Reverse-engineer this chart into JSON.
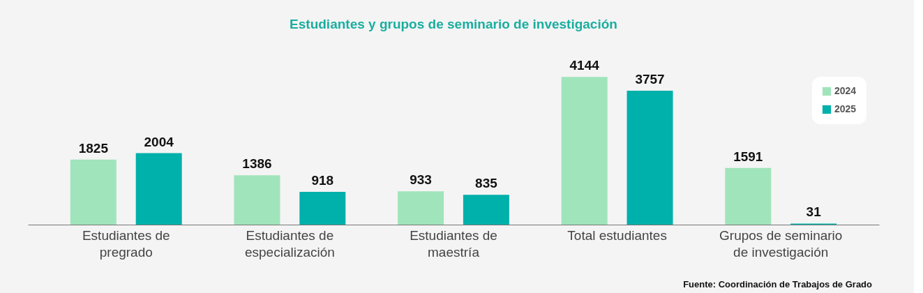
{
  "chart_data": {
    "type": "bar",
    "title": "Estudiantes y grupos de seminario de investigación",
    "categories": [
      "Estudiantes de pregrado",
      "Estudiantes de especialización",
      "Estudiantes de maestría",
      "Total estudiantes",
      "Grupos de seminario de investigación"
    ],
    "series": [
      {
        "name": "2024",
        "color": "#a0e4bb",
        "values": [
          1825,
          1386,
          933,
          4144,
          1591
        ]
      },
      {
        "name": "2025",
        "color": "#00b0aa",
        "values": [
          2004,
          918,
          835,
          3757,
          31
        ]
      }
    ],
    "data_labels": true,
    "legend": "top right",
    "grid": false,
    "annotations": [
      "Fuente: Coordinación de Trabajos de Grado"
    ]
  }
}
